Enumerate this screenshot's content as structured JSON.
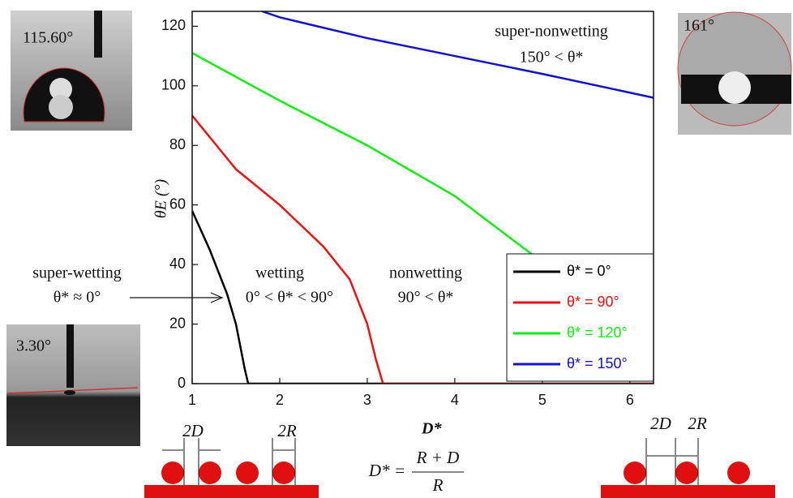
{
  "chart_data": {
    "type": "line",
    "xlabel": "D*",
    "ylabel": "θE (°)",
    "xlim": [
      1,
      6.27
    ],
    "ylim": [
      0,
      125
    ],
    "xticks": [
      1,
      2,
      3,
      4,
      5,
      6
    ],
    "yticks": [
      0,
      20,
      40,
      60,
      80,
      100,
      120
    ],
    "legend": "lower right",
    "series": [
      {
        "name": "θ* = 0°",
        "color": "#000000",
        "x": [
          1,
          1.2,
          1.4,
          1.5,
          1.6,
          1.64,
          6.27
        ],
        "values": [
          58,
          45,
          30,
          20,
          5,
          0,
          0
        ]
      },
      {
        "name": "θ* = 90°",
        "color": "#ee1111",
        "x": [
          1,
          1.5,
          2,
          2.5,
          2.8,
          3,
          3.1,
          3.18,
          6.27
        ],
        "values": [
          90,
          72,
          60,
          46,
          35,
          20,
          8,
          0,
          0
        ]
      },
      {
        "name": "θ* = 120°",
        "color": "#11ee11",
        "x": [
          1,
          2,
          3,
          4,
          4.9,
          5.5,
          6,
          6.27
        ],
        "values": [
          111,
          95,
          80,
          63,
          43,
          30,
          15,
          3
        ]
      },
      {
        "name": "θ* = 150°",
        "color": "#1111cc",
        "x": [
          1.8,
          2,
          3,
          4,
          5,
          6.27
        ],
        "values": [
          125,
          123,
          116,
          110,
          104,
          96
        ]
      }
    ],
    "annotations": [
      "super-nonwetting",
      "150° < θ*",
      "super-wetting",
      "θ* ≈ 0°",
      "wetting",
      "0° < θ* < 90°",
      "nonwetting",
      "90° < θ*"
    ]
  },
  "photos": [
    "115.60°",
    "161°",
    "3.30°"
  ],
  "diagram_labels": [
    "2D",
    "2R",
    "2D",
    "2R"
  ],
  "formula": {
    "lhs": "D* =",
    "numerator": "R + D",
    "denominator": "R"
  }
}
